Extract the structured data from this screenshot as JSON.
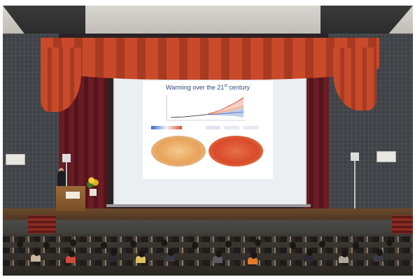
{
  "scene": {
    "description_free": true
  },
  "slide": {
    "title_text": "Warming over the 21",
    "title_superscript": "st",
    "title_suffix": " century"
  },
  "colors": {
    "curtain_red": "#c84a2a",
    "drape_dark": "#6a1c24",
    "screen": "#eceff2",
    "wall": "#3f4246",
    "slide_title": "#2f4a7a"
  },
  "icons": {
    "podium": "podium-icon",
    "flowers": "flower-arrangement-icon"
  }
}
